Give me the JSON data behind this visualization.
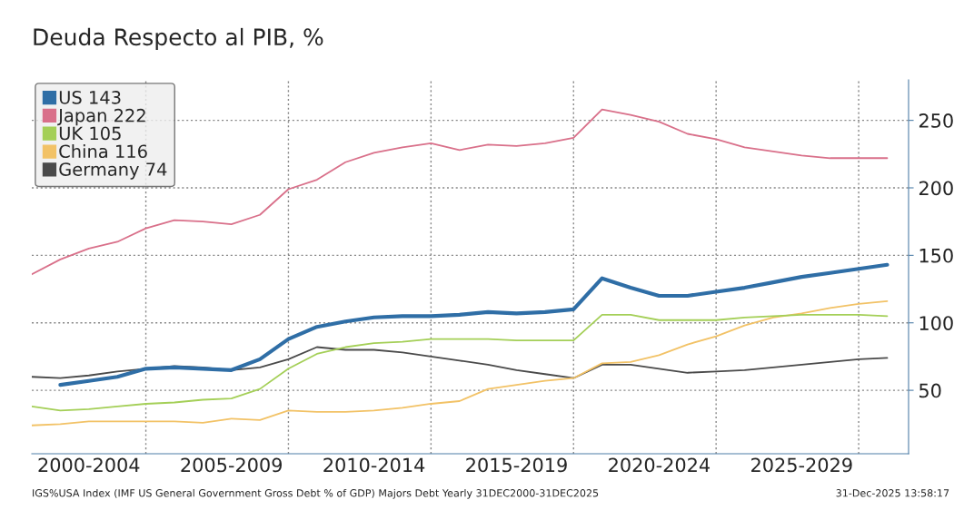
{
  "chart_data": {
    "type": "line",
    "title": "Deuda Respecto al PIB, %",
    "categories": [
      null,
      null,
      "2000-2004",
      null,
      null,
      null,
      null,
      "2005-2009",
      null,
      null,
      null,
      null,
      "2010-2014",
      null,
      null,
      null,
      null,
      "2015-2019",
      null,
      null,
      null,
      null,
      "2020-2024",
      null,
      null,
      null,
      null,
      "2025-2029",
      null,
      null,
      null
    ],
    "series": [
      {
        "name": "US 143",
        "color": "#2f6ea6",
        "values": [
          null,
          54,
          57,
          60,
          66,
          67,
          66,
          65,
          73,
          88,
          97,
          101,
          104,
          105,
          105,
          106,
          108,
          107,
          108,
          110,
          133,
          126,
          120,
          120,
          123,
          126,
          130,
          134,
          137,
          140,
          143
        ]
      },
      {
        "name": "Japan 222",
        "color": "#d9708a",
        "values": [
          136,
          147,
          155,
          160,
          170,
          176,
          175,
          173,
          180,
          199,
          206,
          219,
          226,
          230,
          233,
          228,
          232,
          231,
          233,
          237,
          258,
          254,
          249,
          240,
          236,
          230,
          227,
          224,
          222,
          222,
          222
        ]
      },
      {
        "name": "UK 105",
        "color": "#a4cf57",
        "values": [
          38,
          35,
          36,
          38,
          40,
          41,
          43,
          44,
          51,
          66,
          77,
          82,
          85,
          86,
          88,
          88,
          88,
          87,
          87,
          87,
          106,
          106,
          102,
          102,
          102,
          104,
          105,
          106,
          106,
          106,
          105
        ]
      },
      {
        "name": "China 116",
        "color": "#f2c266",
        "values": [
          24,
          25,
          27,
          27,
          27,
          27,
          26,
          29,
          28,
          35,
          34,
          34,
          35,
          37,
          40,
          42,
          51,
          54,
          57,
          59,
          70,
          71,
          76,
          84,
          90,
          98,
          104,
          107,
          111,
          114,
          116
        ]
      },
      {
        "name": "Germany 74",
        "color": "#4a4a4a",
        "values": [
          60,
          59,
          61,
          64,
          66,
          68,
          67,
          65,
          67,
          73,
          82,
          80,
          80,
          78,
          75,
          72,
          69,
          65,
          62,
          59,
          69,
          69,
          66,
          63,
          64,
          65,
          67,
          69,
          71,
          73,
          74
        ]
      }
    ],
    "ylim": [
      3,
      280
    ],
    "yticks": [
      50,
      100,
      150,
      200,
      250
    ],
    "grid": true,
    "legend": "top left",
    "marker": "none",
    "line_style": "solid",
    "annotations": [
      "IGS%USA Index (IMF US General Government Gross Debt % of GDP) Majors Debt Yearly 31DEC2000-31DEC2025",
      "31-Dec-2025 13:58:17"
    ]
  }
}
